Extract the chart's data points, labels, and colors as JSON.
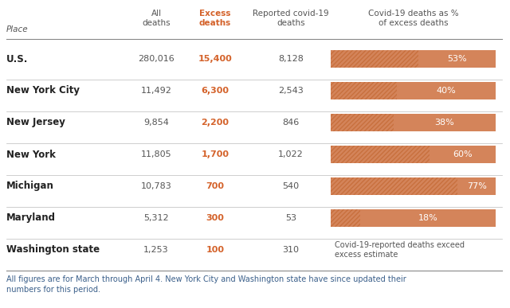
{
  "places": [
    "U.S.",
    "New York City",
    "New Jersey",
    "New York",
    "Michigan",
    "Maryland",
    "Washington state"
  ],
  "all_deaths": [
    "280,016",
    "11,492",
    "9,854",
    "11,805",
    "10,783",
    "5,312",
    "1,253"
  ],
  "excess_deaths": [
    "15,400",
    "6,300",
    "2,200",
    "1,700",
    "700",
    "300",
    "100"
  ],
  "covid_deaths": [
    "8,128",
    "2,543",
    "846",
    "1,022",
    "540",
    "53",
    "310"
  ],
  "pct_values": [
    53,
    40,
    38,
    60,
    77,
    18,
    null
  ],
  "pct_labels": [
    "53%",
    "40%",
    "38%",
    "60%",
    "77%",
    "18%",
    "Covid-19-reported deaths exceed\nexcess estimate"
  ],
  "bg_color": "#ffffff",
  "bar_solid_color": "#d4845a",
  "bar_hatch_color": "#c8703e",
  "text_color": "#555555",
  "place_color": "#222222",
  "excess_color": "#d4622a",
  "header_color": "#555555",
  "line_color": "#bbbbbb",
  "top_line_color": "#888888",
  "footnote_color": "#3a5f8a",
  "footnote": "All figures are for March through April 4. New York City and Washington state have since updated their\nnumbers for this period."
}
